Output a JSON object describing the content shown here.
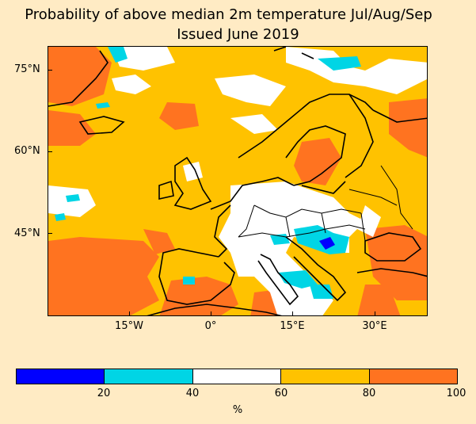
{
  "title": {
    "line1": "Probability of above median 2m temperature Jul/Aug/Sep",
    "line2": "Issued June 2019"
  },
  "map": {
    "lat_ticks": [
      "75°N",
      "60°N",
      "45°N"
    ],
    "lon_ticks": [
      "15°W",
      "0°",
      "15°E",
      "30°E"
    ],
    "colors": {
      "below20": "#0000FF",
      "20to40": "#00D5E5",
      "40to60": "#FFFFFF",
      "60to80": "#FFC200",
      "80to100": "#FF7320",
      "coastline": "#000000"
    }
  },
  "colorbar": {
    "segments": [
      "#0000FF",
      "#00D5E5",
      "#FFFFFF",
      "#FFC200",
      "#FF7320"
    ],
    "labels": [
      "20",
      "40",
      "60",
      "80",
      "100"
    ],
    "unit": "%"
  }
}
